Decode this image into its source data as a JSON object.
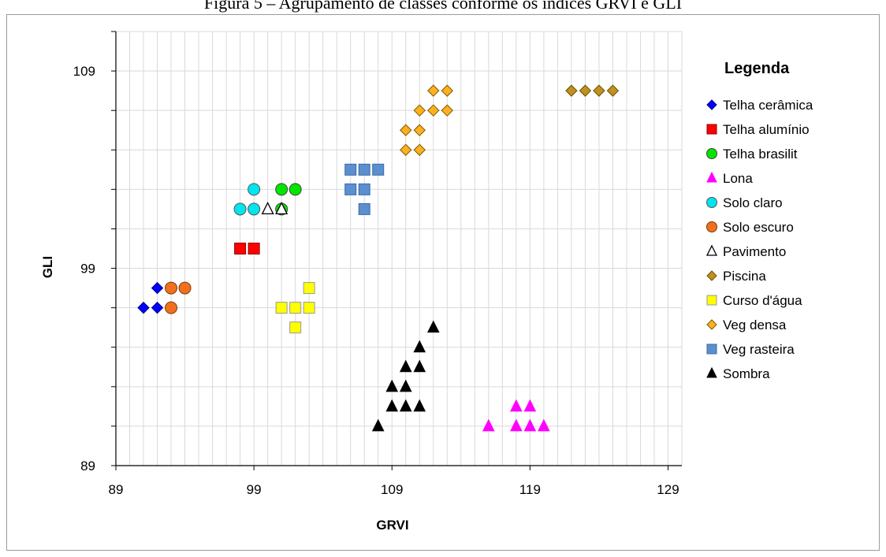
{
  "page_title": "Figura 5 – Agrupamento de classes conforme os índices GRVI e GLI",
  "chart_data": {
    "type": "scatter",
    "title": "Figura 5 – Agrupamento de classes conforme os índices GRVI e GLI",
    "xlabel": "GRVI",
    "ylabel": "GLI",
    "xlim": [
      89,
      130
    ],
    "ylim": [
      89,
      111
    ],
    "x_ticks": [
      89,
      99,
      109,
      119,
      129
    ],
    "y_ticks": [
      89,
      99,
      109
    ],
    "x_minor_step": 1,
    "y_minor_step": 2,
    "grid": true,
    "legend_title": "Legenda",
    "legend_position": "right",
    "series": [
      {
        "name": "Telha cerâmica",
        "marker": "diamond",
        "color": "#0000ff",
        "stroke": "#00008b",
        "points": [
          [
            91,
            97
          ],
          [
            92,
            97
          ],
          [
            92,
            98
          ]
        ]
      },
      {
        "name": "Telha alumínio",
        "marker": "square",
        "color": "#ff0000",
        "stroke": "#8b0000",
        "points": [
          [
            98,
            100
          ],
          [
            99,
            100
          ]
        ]
      },
      {
        "name": "Telha brasilit",
        "marker": "circle",
        "color": "#00e600",
        "stroke": "#444444",
        "points": [
          [
            101,
            102
          ],
          [
            101,
            103
          ],
          [
            102,
            103
          ]
        ]
      },
      {
        "name": "Lona",
        "marker": "triangle",
        "color": "#ff00ff",
        "stroke": "#ff00ff",
        "points": [
          [
            116,
            91
          ],
          [
            118,
            91
          ],
          [
            118,
            92
          ],
          [
            119,
            91
          ],
          [
            119,
            92
          ],
          [
            120,
            91
          ]
        ]
      },
      {
        "name": "Solo claro",
        "marker": "circle",
        "color": "#00e5ee",
        "stroke": "#555555",
        "points": [
          [
            98,
            102
          ],
          [
            99,
            102
          ],
          [
            99,
            103
          ]
        ]
      },
      {
        "name": "Solo escuro",
        "marker": "circle",
        "color": "#f07020",
        "stroke": "#7a3a00",
        "points": [
          [
            93,
            97
          ],
          [
            93,
            98
          ],
          [
            94,
            98
          ]
        ]
      },
      {
        "name": "Pavimento",
        "marker": "triangle-open",
        "color": "#ffffff",
        "stroke": "#000000",
        "points": [
          [
            100,
            102
          ],
          [
            101,
            102
          ]
        ]
      },
      {
        "name": "Piscina",
        "marker": "diamond",
        "color": "#c09020",
        "stroke": "#6b5000",
        "points": [
          [
            122,
            108
          ],
          [
            123,
            108
          ],
          [
            124,
            108
          ],
          [
            125,
            108
          ]
        ]
      },
      {
        "name": "Curso d'água",
        "marker": "square",
        "color": "#ffff00",
        "stroke": "#999999",
        "points": [
          [
            101,
            97
          ],
          [
            102,
            96
          ],
          [
            102,
            97
          ],
          [
            103,
            97
          ],
          [
            103,
            98
          ]
        ]
      },
      {
        "name": "Veg densa",
        "marker": "diamond",
        "color": "#ffb020",
        "stroke": "#7a5a00",
        "points": [
          [
            110,
            105
          ],
          [
            111,
            105
          ],
          [
            110,
            106
          ],
          [
            111,
            106
          ],
          [
            111,
            107
          ],
          [
            112,
            107
          ],
          [
            113,
            107
          ],
          [
            112,
            108
          ],
          [
            113,
            108
          ]
        ]
      },
      {
        "name": "Veg rasteira",
        "marker": "square",
        "color": "#5b8fd0",
        "stroke": "#3a6aa8",
        "points": [
          [
            106,
            103
          ],
          [
            107,
            103
          ],
          [
            107,
            102
          ],
          [
            106,
            104
          ],
          [
            107,
            104
          ],
          [
            108,
            104
          ]
        ]
      },
      {
        "name": "Sombra",
        "marker": "triangle",
        "color": "#000000",
        "stroke": "#000000",
        "points": [
          [
            108,
            91
          ],
          [
            109,
            92
          ],
          [
            109,
            93
          ],
          [
            110,
            92
          ],
          [
            110,
            93
          ],
          [
            110,
            94
          ],
          [
            111,
            92
          ],
          [
            111,
            94
          ],
          [
            111,
            95
          ],
          [
            112,
            96
          ]
        ]
      }
    ]
  }
}
